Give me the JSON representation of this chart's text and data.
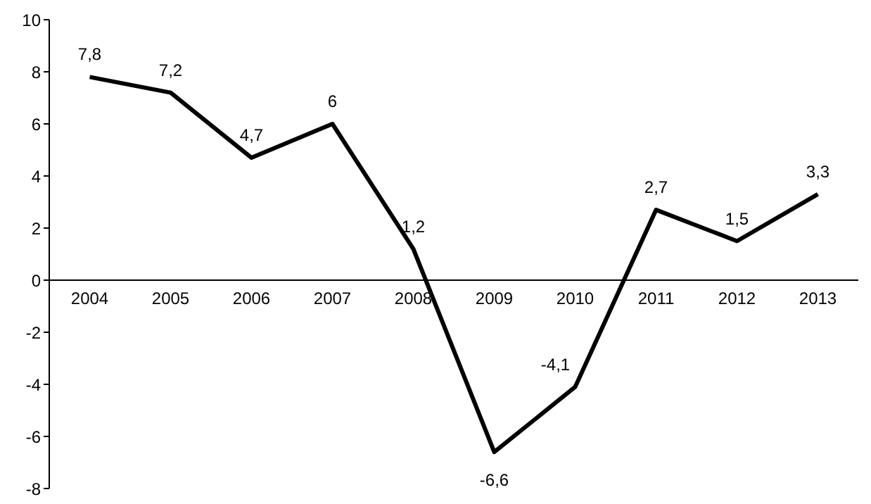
{
  "chart_data": {
    "type": "line",
    "categories": [
      "2004",
      "2005",
      "2006",
      "2007",
      "2008",
      "2009",
      "2010",
      "2011",
      "2012",
      "2013"
    ],
    "series": [
      {
        "color": "#000000",
        "values": [
          7.8,
          7.2,
          4.7,
          6,
          1.2,
          -6.6,
          -4.1,
          2.7,
          1.5,
          3.3
        ],
        "value_labels": [
          "7,8",
          "7,2",
          "4,7",
          "6",
          "1,2",
          "-6,6",
          "-4,1",
          "2,7",
          "1,5",
          "3,3"
        ]
      }
    ],
    "ylim": [
      -8,
      10
    ],
    "yticks": [
      -8,
      -6,
      -4,
      -2,
      0,
      2,
      4,
      6,
      8,
      10
    ],
    "marker": "none",
    "line_style": "solid"
  }
}
